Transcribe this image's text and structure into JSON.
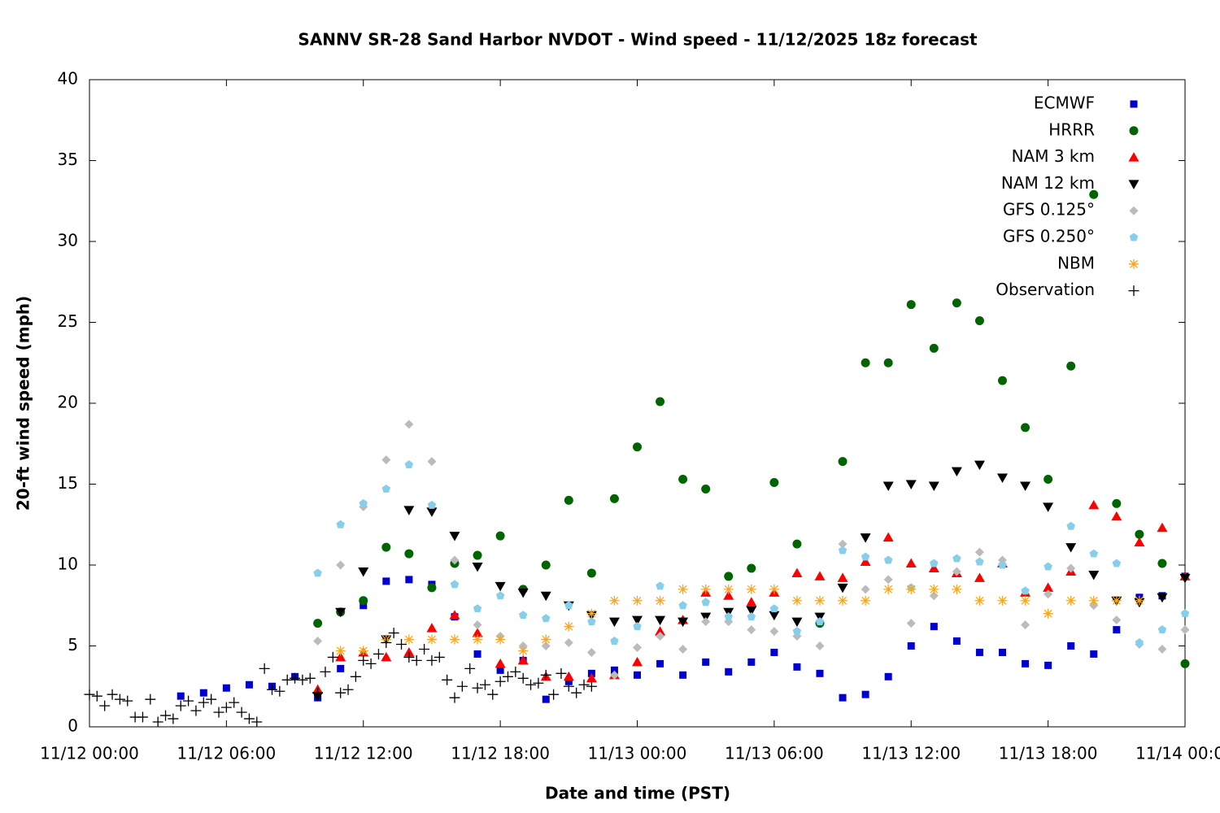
{
  "chart_data": {
    "type": "scatter",
    "title": "SANNV SR-28 Sand Harbor NVDOT - Wind speed - 11/12/2025 18z forecast",
    "x_label": "Date and time (PST)",
    "y_label": "20-ft wind speed (mph)",
    "xlim": [
      "11/12 00:00",
      "11/14 00:00"
    ],
    "xticks": [
      "11/12 00:00",
      "11/12 06:00",
      "11/12 12:00",
      "11/12 18:00",
      "11/13 00:00",
      "11/13 06:00",
      "11/13 12:00",
      "11/13 18:00",
      "11/14 00:00"
    ],
    "ylim": [
      0,
      40
    ],
    "yticks": [
      0,
      5,
      10,
      15,
      20,
      25,
      30,
      35,
      40
    ],
    "grid": false,
    "legend_position": "top-right",
    "x": [
      "11/12 04:00",
      "11/12 05:00",
      "11/12 06:00",
      "11/12 07:00",
      "11/12 08:00",
      "11/12 09:00",
      "11/12 10:00",
      "11/12 11:00",
      "11/12 12:00",
      "11/12 13:00",
      "11/12 14:00",
      "11/12 15:00",
      "11/12 16:00",
      "11/12 17:00",
      "11/12 18:00",
      "11/12 19:00",
      "11/12 20:00",
      "11/12 21:00",
      "11/12 22:00",
      "11/12 23:00",
      "11/13 00:00",
      "11/13 01:00",
      "11/13 02:00",
      "11/13 03:00",
      "11/13 04:00",
      "11/13 05:00",
      "11/13 06:00",
      "11/13 07:00",
      "11/13 08:00",
      "11/13 09:00",
      "11/13 10:00",
      "11/13 11:00",
      "11/13 12:00",
      "11/13 13:00",
      "11/13 14:00",
      "11/13 15:00",
      "11/13 16:00",
      "11/13 17:00",
      "11/13 18:00",
      "11/13 19:00",
      "11/13 20:00",
      "11/13 21:00",
      "11/13 22:00",
      "11/13 23:00",
      "11/14 00:00"
    ],
    "series": [
      {
        "name": "ECMWF",
        "color": "#0000cc",
        "marker": "square",
        "values": [
          1.9,
          2.1,
          2.4,
          2.6,
          2.5,
          3.1,
          1.8,
          3.6,
          7.5,
          9.0,
          9.1,
          8.8,
          6.8,
          4.5,
          3.5,
          4.1,
          1.7,
          2.8,
          3.3,
          3.5,
          3.2,
          3.9,
          3.2,
          4.0,
          3.4,
          4.0,
          4.6,
          3.7,
          3.3,
          1.8,
          2.0,
          3.1,
          5.0,
          6.2,
          5.3,
          4.6,
          4.6,
          3.9,
          3.8,
          5.0,
          4.5,
          6.0,
          8.0,
          8.1,
          9.3
        ]
      },
      {
        "name": "HRRR",
        "color": "#006400",
        "marker": "circle",
        "values": [
          null,
          null,
          null,
          null,
          null,
          null,
          6.4,
          7.1,
          7.8,
          11.1,
          10.7,
          8.6,
          10.1,
          10.6,
          11.8,
          8.5,
          10.0,
          14.0,
          9.5,
          14.1,
          17.3,
          20.1,
          15.3,
          14.7,
          9.3,
          9.8,
          15.1,
          11.3,
          6.4,
          16.4,
          22.5,
          22.5,
          26.1,
          23.4,
          26.2,
          25.1,
          21.4,
          18.5,
          15.3,
          22.3,
          32.9,
          13.8,
          11.9,
          10.1,
          3.9
        ]
      },
      {
        "name": "NAM 3 km",
        "color": "#ff0000",
        "marker": "triangle-up",
        "values": [
          null,
          null,
          null,
          null,
          null,
          null,
          2.3,
          4.3,
          4.6,
          4.3,
          4.6,
          6.1,
          6.9,
          5.8,
          3.9,
          4.1,
          3.1,
          3.1,
          3.0,
          3.2,
          4.0,
          5.9,
          6.6,
          8.3,
          8.1,
          7.7,
          8.3,
          9.5,
          9.3,
          9.2,
          10.2,
          11.7,
          10.1,
          9.8,
          9.5,
          9.2,
          10.1,
          8.3,
          8.6,
          9.6,
          13.7,
          13.0,
          11.4,
          12.3,
          9.3
        ]
      },
      {
        "name": "NAM 12 km",
        "color": "#000000",
        "marker": "triangle-down",
        "values": [
          null,
          null,
          null,
          null,
          null,
          null,
          1.9,
          7.1,
          9.6,
          5.4,
          13.4,
          13.3,
          11.8,
          9.9,
          8.7,
          8.3,
          8.1,
          7.5,
          6.9,
          6.5,
          6.6,
          6.6,
          6.5,
          6.8,
          7.1,
          7.2,
          6.9,
          6.5,
          6.8,
          8.6,
          11.7,
          14.9,
          15.0,
          14.9,
          15.8,
          16.2,
          15.4,
          14.9,
          13.6,
          11.1,
          9.4,
          7.8,
          7.7,
          8.0,
          9.2
        ]
      },
      {
        "name": "GFS 0.125°",
        "color": "#bbbbbb",
        "marker": "diamond",
        "values": [
          null,
          null,
          null,
          null,
          null,
          null,
          5.3,
          10.0,
          13.6,
          16.5,
          18.7,
          16.4,
          10.3,
          6.3,
          5.6,
          5.0,
          5.0,
          5.2,
          4.6,
          3.2,
          4.9,
          5.6,
          4.8,
          6.5,
          6.5,
          6.0,
          5.9,
          5.6,
          5.0,
          11.3,
          8.5,
          9.1,
          6.4,
          8.1,
          9.6,
          10.8,
          10.3,
          6.3,
          8.2,
          9.8,
          7.5,
          6.6,
          5.1,
          4.8,
          6.0
        ]
      },
      {
        "name": "GFS 0.250°",
        "color": "#87ceeb",
        "marker": "pentagon",
        "values": [
          null,
          null,
          null,
          null,
          null,
          null,
          9.5,
          12.5,
          13.8,
          14.7,
          16.2,
          13.7,
          8.8,
          7.3,
          8.1,
          6.9,
          6.7,
          7.5,
          6.5,
          5.3,
          6.2,
          8.7,
          7.5,
          7.7,
          6.8,
          6.8,
          7.3,
          5.9,
          6.5,
          10.9,
          10.5,
          10.3,
          8.6,
          10.1,
          10.4,
          10.2,
          10.0,
          8.4,
          9.9,
          12.4,
          10.7,
          10.1,
          5.2,
          6.0,
          7.0
        ]
      },
      {
        "name": "NBM",
        "color": "#f5a623",
        "marker": "asterisk",
        "values": [
          null,
          null,
          null,
          null,
          null,
          null,
          null,
          4.7,
          4.7,
          5.4,
          5.4,
          5.4,
          5.4,
          5.4,
          5.4,
          4.7,
          5.4,
          6.2,
          7.0,
          7.8,
          7.8,
          7.8,
          8.5,
          8.5,
          8.5,
          8.5,
          8.5,
          7.8,
          7.8,
          7.8,
          7.8,
          8.5,
          8.5,
          8.5,
          8.5,
          7.8,
          7.8,
          7.8,
          7.0,
          7.8,
          7.8,
          7.8,
          7.8,
          null,
          null
        ]
      },
      {
        "name": "Observation",
        "color": "#000000",
        "marker": "plus",
        "x": [
          "11/12 00:00",
          "11/12 00:20",
          "11/12 00:40",
          "11/12 01:00",
          "11/12 01:20",
          "11/12 01:40",
          "11/12 02:00",
          "11/12 02:20",
          "11/12 02:40",
          "11/12 03:00",
          "11/12 03:20",
          "11/12 03:40",
          "11/12 04:00",
          "11/12 04:20",
          "11/12 04:40",
          "11/12 05:00",
          "11/12 05:20",
          "11/12 05:40",
          "11/12 06:00",
          "11/12 06:20",
          "11/12 06:40",
          "11/12 07:00",
          "11/12 07:20",
          "11/12 07:40",
          "11/12 08:00",
          "11/12 08:20",
          "11/12 08:40",
          "11/12 09:00",
          "11/12 09:20",
          "11/12 09:40",
          "11/12 10:00",
          "11/12 10:20",
          "11/12 10:40",
          "11/12 11:00",
          "11/12 11:20",
          "11/12 11:40",
          "11/12 12:00",
          "11/12 12:20",
          "11/12 12:40",
          "11/12 13:00",
          "11/12 13:20",
          "11/12 13:40",
          "11/12 14:00",
          "11/12 14:20",
          "11/12 14:40",
          "11/12 15:00",
          "11/12 15:20",
          "11/12 15:40",
          "11/12 16:00",
          "11/12 16:20",
          "11/12 16:40",
          "11/12 17:00",
          "11/12 17:20",
          "11/12 17:40",
          "11/12 18:00",
          "11/12 18:20",
          "11/12 18:40",
          "11/12 19:00",
          "11/12 19:20",
          "11/12 19:40",
          "11/12 20:00",
          "11/12 20:20",
          "11/12 20:40",
          "11/12 21:00",
          "11/12 21:20",
          "11/12 21:40",
          "11/12 22:00"
        ],
        "values": [
          2.0,
          1.9,
          1.3,
          2.0,
          1.7,
          1.6,
          0.6,
          0.6,
          1.7,
          0.3,
          0.7,
          0.5,
          1.3,
          1.6,
          1.0,
          1.5,
          1.7,
          0.9,
          1.2,
          1.5,
          0.9,
          0.5,
          0.3,
          3.6,
          2.3,
          2.2,
          2.9,
          3.0,
          2.9,
          3.0,
          2.1,
          3.4,
          4.3,
          2.1,
          2.3,
          3.1,
          4.1,
          3.9,
          4.5,
          5.2,
          5.8,
          5.1,
          4.3,
          4.1,
          4.8,
          4.1,
          4.3,
          2.9,
          1.8,
          2.5,
          3.6,
          2.4,
          2.6,
          2.0,
          2.8,
          3.1,
          3.4,
          3.0,
          2.6,
          2.7,
          3.2,
          2.0,
          3.3,
          2.5,
          2.1,
          2.6,
          2.5
        ]
      }
    ]
  }
}
